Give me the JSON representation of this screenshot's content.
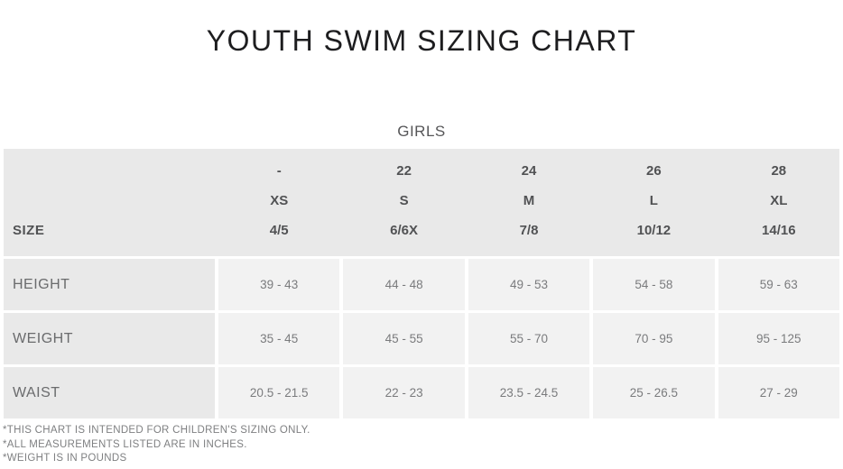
{
  "chart_data": {
    "type": "table",
    "title": "YOUTH SWIM SIZING CHART",
    "group_label": "GIRLS",
    "header_rows": [
      {
        "label": "",
        "cells": [
          "-",
          "22",
          "24",
          "26",
          "28"
        ]
      },
      {
        "label": "",
        "cells": [
          "XS",
          "S",
          "M",
          "L",
          "XL"
        ]
      },
      {
        "label": "SIZE",
        "cells": [
          "4/5",
          "6/6X",
          "7/8",
          "10/12",
          "14/16"
        ]
      }
    ],
    "rows": [
      {
        "label": "HEIGHT",
        "cells": [
          "39 - 43",
          "44 - 48",
          "49 - 53",
          "54 - 58",
          "59 - 63"
        ]
      },
      {
        "label": "WEIGHT",
        "cells": [
          "35 - 45",
          "45 - 55",
          "55 - 70",
          "70 - 95",
          "95 - 125"
        ]
      },
      {
        "label": "WAIST",
        "cells": [
          "20.5 - 21.5",
          "22 - 23",
          "23.5 - 24.5",
          "25 - 26.5",
          "27 - 29"
        ]
      }
    ],
    "footnotes": [
      "*THIS CHART IS INTENDED FOR CHILDREN'S SIZING ONLY.",
      "*ALL MEASUREMENTS LISTED ARE IN INCHES.",
      "*WEIGHT IS IN POUNDS"
    ]
  },
  "colors": {
    "header_band_bg": "#e9e9e9",
    "row_label_bg": "#e9e9e9",
    "data_cell_bg": "#f2f2f2",
    "header_text": "#515254",
    "data_text": "#7a7b7d",
    "row_label_text": "#6a6b6d",
    "title_text": "#1d1d1f",
    "group_label_text": "#565658",
    "footnote_text": "#7f8082"
  }
}
